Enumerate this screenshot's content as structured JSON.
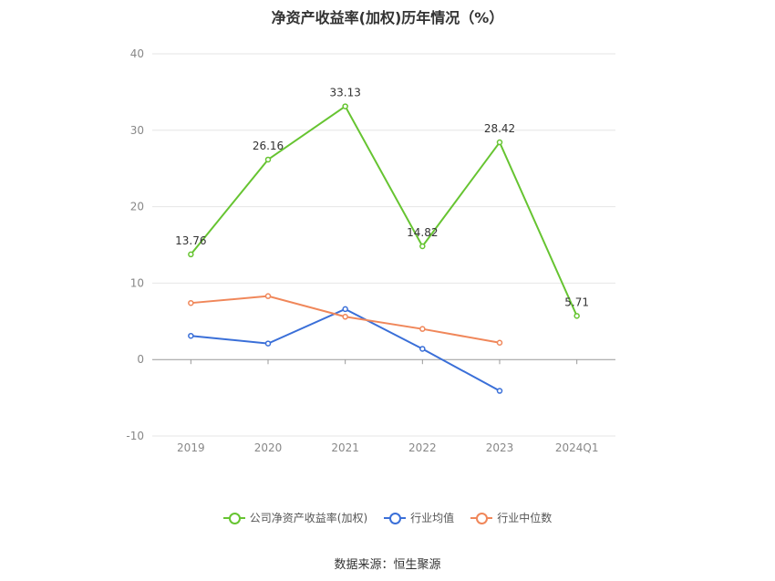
{
  "title": "净资产收益率(加权)历年情况（%）",
  "source": "数据来源：恒生聚源",
  "chart_data": {
    "type": "line",
    "categories": [
      "2019",
      "2020",
      "2021",
      "2022",
      "2023",
      "2024Q1"
    ],
    "ylim": [
      -10,
      40
    ],
    "yticks": [
      -10,
      0,
      10,
      20,
      30,
      40
    ],
    "grid": true,
    "legend_position": "bottom",
    "series": [
      {
        "name": "公司净资产收益率(加权)",
        "color": "#66c431",
        "values": [
          13.76,
          26.16,
          33.13,
          14.82,
          28.42,
          5.71
        ],
        "labels": [
          "13.76",
          "26.16",
          "33.13",
          "14.82",
          "28.42",
          "5.71"
        ]
      },
      {
        "name": "行业均值",
        "color": "#3a6fd8",
        "values": [
          3.1,
          2.1,
          6.6,
          1.4,
          -4.1,
          null
        ]
      },
      {
        "name": "行业中位数",
        "color": "#f0875a",
        "values": [
          7.4,
          8.3,
          5.6,
          4.0,
          2.2,
          null
        ]
      }
    ]
  }
}
